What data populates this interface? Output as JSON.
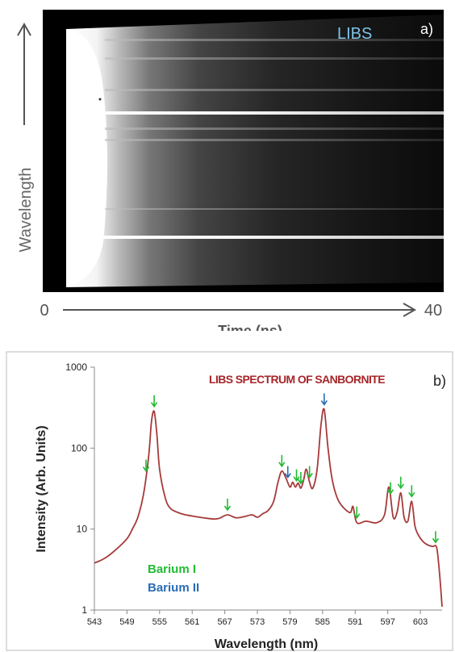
{
  "panel_a": {
    "label": "a)",
    "title": "LIBS",
    "ylabel": "Wavelength",
    "xlabel": "Time (ns)",
    "x_start": "0",
    "x_end": "40"
  },
  "chart_data": {
    "type": "line",
    "title": "LIBS SPECTRUM OF SANBORNITE",
    "panel_label": "b)",
    "xlabel": "Wavelength (nm)",
    "ylabel": "Intensity (Arb. Units)",
    "xlim": [
      543,
      607
    ],
    "ylim": [
      1,
      1000
    ],
    "y_scale": "log",
    "grid": false,
    "x_ticks": [
      "543",
      "549",
      "555",
      "561",
      "567",
      "573",
      "579",
      "585",
      "591",
      "597",
      "603"
    ],
    "y_ticks": [
      "1",
      "10",
      "100",
      "1000"
    ],
    "series": [
      {
        "color": "#a63a3a",
        "x": [
          543,
          545,
          547,
          549,
          550,
          551,
          552,
          553,
          553.5,
          554,
          554.5,
          555,
          556,
          557,
          559,
          561,
          563,
          565,
          566,
          567.5,
          569,
          570.5,
          572,
          573,
          574,
          575,
          576,
          576.8,
          577.5,
          578.3,
          579,
          579.5,
          580,
          580.5,
          581,
          581.5,
          582,
          582.6,
          583.2,
          584,
          584.7,
          585.3,
          586,
          586.8,
          588,
          590,
          590.6,
          591.3,
          593,
          595,
          596.4,
          597.2,
          598,
          598.7,
          599.4,
          600,
          600.7,
          601.4,
          602,
          602.6,
          603.5,
          604.5,
          605.3,
          606,
          606.5,
          607
        ],
        "y": [
          3.8,
          4.4,
          5.6,
          7.6,
          10,
          14,
          26,
          80,
          210,
          285,
          150,
          55,
          25,
          18,
          15.5,
          14.5,
          13.8,
          13.3,
          13.6,
          15,
          13.8,
          14.2,
          15,
          14,
          15.5,
          17,
          22,
          38,
          52,
          42,
          33,
          38,
          33,
          37,
          32,
          40,
          55,
          38,
          32,
          55,
          190,
          300,
          100,
          40,
          22,
          16,
          19,
          12,
          12.5,
          12,
          15,
          33,
          14,
          16,
          28,
          14,
          12.5,
          22,
          11,
          8.5,
          7,
          6.3,
          6.1,
          5.9,
          3,
          1.1
        ]
      }
    ],
    "legend": [
      {
        "label": "Barium I",
        "color": "#22bb33"
      },
      {
        "label": "Barium II",
        "color": "#2a6db5"
      }
    ],
    "markers": {
      "barium_i": [
        552.5,
        554,
        567.5,
        577.5,
        580.2,
        581,
        582.6,
        591.3,
        597.5,
        599.4,
        601.4,
        605.8
      ],
      "barium_ii": [
        578.6,
        585.3
      ]
    }
  }
}
